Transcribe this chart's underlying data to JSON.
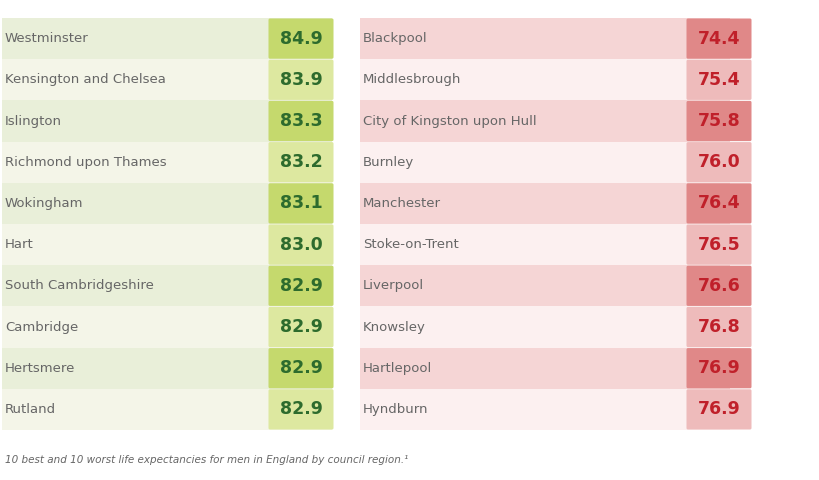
{
  "left_regions": [
    "Westminster",
    "Kensington and Chelsea",
    "Islington",
    "Richmond upon Thames",
    "Wokingham",
    "Hart",
    "South Cambridgeshire",
    "Cambridge",
    "Hertsmere",
    "Rutland"
  ],
  "left_values": [
    "84.9",
    "83.9",
    "83.3",
    "83.2",
    "83.1",
    "83.0",
    "82.9",
    "82.9",
    "82.9",
    "82.9"
  ],
  "right_regions": [
    "Blackpool",
    "Middlesbrough",
    "City of Kingston upon Hull",
    "Burnley",
    "Manchester",
    "Stoke-on-Trent",
    "Liverpool",
    "Knowsley",
    "Hartlepool",
    "Hyndburn"
  ],
  "right_values": [
    "74.4",
    "75.4",
    "75.8",
    "76.0",
    "76.4",
    "76.5",
    "76.6",
    "76.8",
    "76.9",
    "76.9"
  ],
  "left_bg_highlight": "#e9efd9",
  "left_bg_plain": "#f4f5e8",
  "left_value_highlight_bg": "#c5d96d",
  "left_value_plain_bg": "#dde8a0",
  "left_value_color": "#2d6b2d",
  "right_bg_highlight": "#f5d5d5",
  "right_bg_plain": "#fcf0f0",
  "right_value_highlight_bg": "#e08888",
  "right_value_plain_bg": "#eebbbb",
  "right_value_color": "#c0202a",
  "bg_color": "#ffffff",
  "label_color": "#666666",
  "footer_text": "10 best and 10 worst life expectancies for men in England by council region.¹",
  "highlights": [
    true,
    false,
    true,
    false,
    true,
    false,
    true,
    false,
    true,
    false
  ],
  "font_size": 9.5,
  "value_font_size": 12.5,
  "footer_font_size": 7.5
}
